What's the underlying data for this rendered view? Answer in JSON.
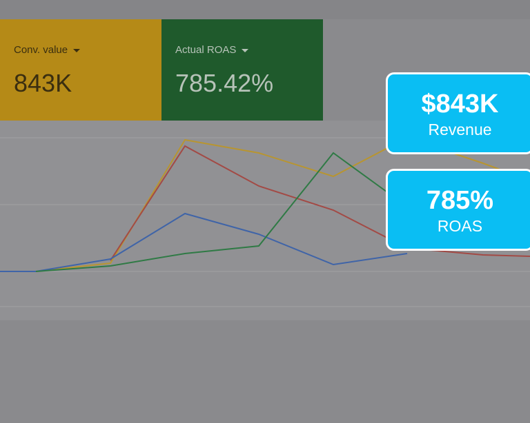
{
  "scorecards": [
    {
      "label": "Conv. value",
      "value": "843K"
    },
    {
      "label": "Actual ROAS",
      "value": "785.42%"
    }
  ],
  "callouts": [
    {
      "value": "$843K",
      "label": "Revenue"
    },
    {
      "value": "785%",
      "label": "ROAS"
    }
  ]
}
